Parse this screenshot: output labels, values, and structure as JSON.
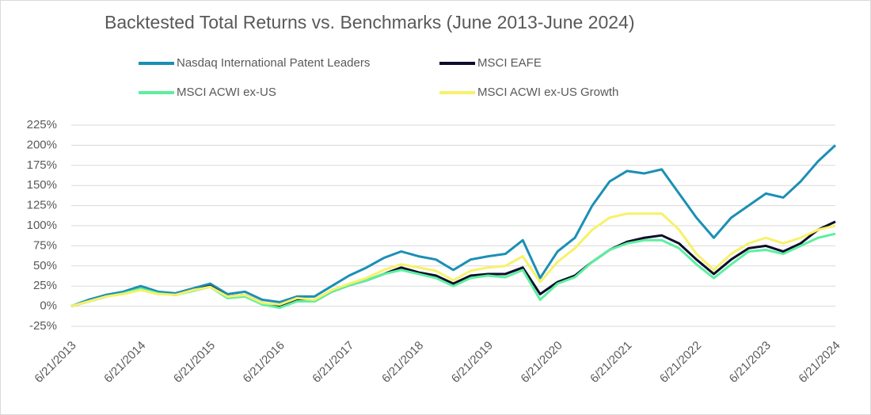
{
  "chart_data": {
    "type": "line",
    "title": "Backtested Total Returns vs. Benchmarks (June 2013-June 2024)",
    "categories": [
      "6/21/2013",
      null,
      null,
      null,
      "6/21/2014",
      null,
      null,
      null,
      "6/21/2015",
      null,
      null,
      null,
      "6/21/2016",
      null,
      null,
      null,
      "6/21/2017",
      null,
      null,
      null,
      "6/21/2018",
      null,
      null,
      null,
      "6/21/2019",
      null,
      null,
      null,
      "6/21/2020",
      null,
      null,
      null,
      "6/21/2021",
      null,
      null,
      null,
      "6/21/2022",
      null,
      null,
      null,
      "6/21/2023",
      null,
      null,
      null,
      "6/21/2024"
    ],
    "series": [
      {
        "name": "Nasdaq International Patent Leaders",
        "color": "#1b8fb5",
        "values": [
          0,
          8,
          14,
          18,
          25,
          18,
          16,
          22,
          28,
          15,
          18,
          8,
          5,
          12,
          12,
          25,
          38,
          48,
          60,
          68,
          62,
          58,
          45,
          58,
          62,
          65,
          82,
          35,
          68,
          85,
          125,
          155,
          168,
          165,
          170,
          140,
          110,
          85,
          110,
          125,
          140,
          135,
          155,
          180,
          200
        ]
      },
      {
        "name": "MSCI EAFE",
        "color": "#0d0d2b",
        "values": [
          0,
          6,
          12,
          16,
          22,
          16,
          14,
          20,
          25,
          12,
          14,
          4,
          0,
          8,
          6,
          18,
          26,
          32,
          40,
          48,
          42,
          38,
          28,
          38,
          40,
          40,
          48,
          15,
          30,
          38,
          55,
          70,
          80,
          85,
          88,
          78,
          58,
          40,
          58,
          72,
          75,
          68,
          78,
          95,
          105
        ]
      },
      {
        "name": "MSCI ACWI ex-US",
        "color": "#5cf0a0",
        "values": [
          0,
          6,
          12,
          16,
          22,
          16,
          14,
          19,
          24,
          10,
          12,
          2,
          -2,
          6,
          6,
          18,
          26,
          32,
          40,
          45,
          40,
          35,
          25,
          35,
          38,
          36,
          45,
          8,
          28,
          36,
          55,
          70,
          78,
          82,
          82,
          72,
          52,
          35,
          52,
          68,
          70,
          65,
          75,
          85,
          90
        ]
      },
      {
        "name": "MSCI ACWI ex-US Growth",
        "color": "#f7f16a",
        "values": [
          0,
          6,
          12,
          15,
          20,
          15,
          14,
          20,
          24,
          12,
          14,
          4,
          2,
          10,
          8,
          20,
          28,
          35,
          45,
          52,
          48,
          44,
          32,
          44,
          48,
          50,
          62,
          30,
          55,
          72,
          95,
          110,
          115,
          115,
          115,
          95,
          65,
          45,
          65,
          78,
          85,
          78,
          85,
          95,
          100
        ]
      }
    ],
    "ylim": [
      -25,
      225
    ],
    "yticks": [
      {
        "value": -25,
        "label": "-25%"
      },
      {
        "value": 0,
        "label": "0%"
      },
      {
        "value": 25,
        "label": "25%"
      },
      {
        "value": 50,
        "label": "50%"
      },
      {
        "value": 75,
        "label": "75%"
      },
      {
        "value": 100,
        "label": "100%"
      },
      {
        "value": 125,
        "label": "125%"
      },
      {
        "value": 150,
        "label": "150%"
      },
      {
        "value": 175,
        "label": "175%"
      },
      {
        "value": 200,
        "label": "200%"
      },
      {
        "value": 225,
        "label": "225%"
      }
    ],
    "grid": true
  }
}
